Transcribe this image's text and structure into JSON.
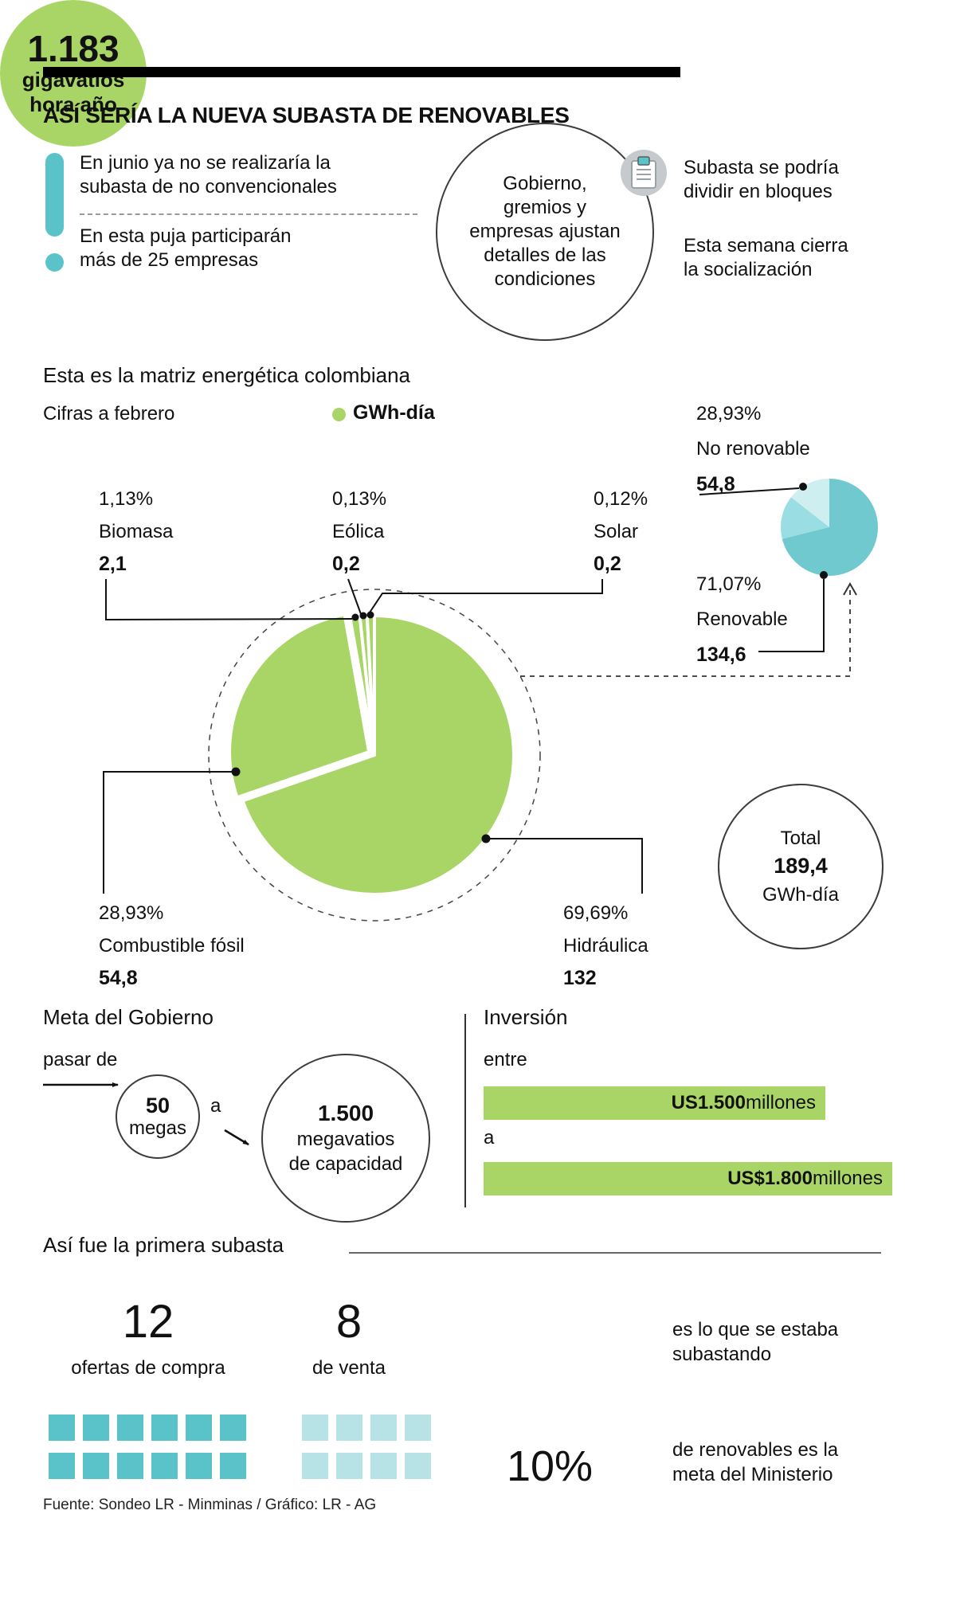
{
  "colors": {
    "green": "#a9d566",
    "teal": "#5ac3c9",
    "teal_light": "#b7e3e6"
  },
  "header": {
    "title": "ASÍ SERÍA LA NUEVA SUBASTA DE RENOVABLES"
  },
  "intro": {
    "note1": "En junio ya no se realizaría la\nsubasta de no convencionales",
    "note2": "En esta puja participarán\nmás de 25 empresas",
    "circle_text": "Gobierno,\ngremios y\nempresas ajustan\ndetalles de las\ncondiciones",
    "right_note1": "Subasta se podría\ndividir en bloques",
    "right_note2": "Esta semana cierra\nla socialización"
  },
  "matrix": {
    "title": "Esta es la matriz energética colombiana",
    "subtitle": "Cifras a febrero",
    "legend": "GWh-día"
  },
  "chart_data": {
    "type": "pie",
    "title": "Esta es la matriz energética colombiana",
    "as_of": "Cifras a febrero",
    "unit": "GWh-día",
    "slices": [
      {
        "name": "Hidráulica",
        "pct": 69.69,
        "pct_label": "69,69%",
        "value": "132"
      },
      {
        "name": "Combustible fósil",
        "pct": 28.93,
        "pct_label": "28,93%",
        "value": "54,8",
        "exploded": true
      },
      {
        "name": "Biomasa",
        "pct": 1.13,
        "pct_label": "1,13%",
        "value": "2,1"
      },
      {
        "name": "Eólica",
        "pct": 0.13,
        "pct_label": "0,13%",
        "value": "0,2"
      },
      {
        "name": "Solar",
        "pct": 0.12,
        "pct_label": "0,12%",
        "value": "0,2"
      }
    ],
    "secondary_pie": {
      "slices": [
        {
          "name": "No renovable",
          "pct": 28.93,
          "pct_label": "28,93%",
          "value": "54,8"
        },
        {
          "name": "Renovable",
          "pct": 71.07,
          "pct_label": "71,07%",
          "value": "134,6"
        }
      ]
    },
    "total": {
      "label": "Total",
      "value": "189,4",
      "unit": "GWh-día"
    },
    "colors": {
      "green": "#a9d566",
      "teal_dark": "#6fc9cf",
      "teal_mid": "#9adde2",
      "teal_light": "#cfeef0"
    }
  },
  "goal": {
    "title": "Meta del Gobierno",
    "lead": "pasar de",
    "from_value": "50",
    "from_unit": "megas",
    "connector": "a",
    "to_value": "1.500",
    "to_line2": "megavatios",
    "to_line3": "de capacidad"
  },
  "investment": {
    "title": "Inversión",
    "lead": "entre",
    "bar1_value": "US1.500",
    "bar1_suffix": " millones",
    "connector": "a",
    "bar2_value": "US$1.800",
    "bar2_suffix": " millones"
  },
  "first_auction": {
    "title": "Así fue la primera subasta",
    "buy_count": "12",
    "buy_label": "ofertas de compra",
    "buy_squares": 12,
    "sell_count": "8",
    "sell_label": "de venta",
    "sell_squares": 8,
    "award_value": "1.183",
    "award_line2": "gigavatios",
    "award_line3": "hora año",
    "award_caption": "es lo que se estaba\nsubastando",
    "pct": "10%",
    "pct_caption": "de renovables es la\nmeta del Ministerio"
  },
  "footer": {
    "source": "Fuente: Sondeo LR - Minminas / Gráfico: LR - AG"
  }
}
